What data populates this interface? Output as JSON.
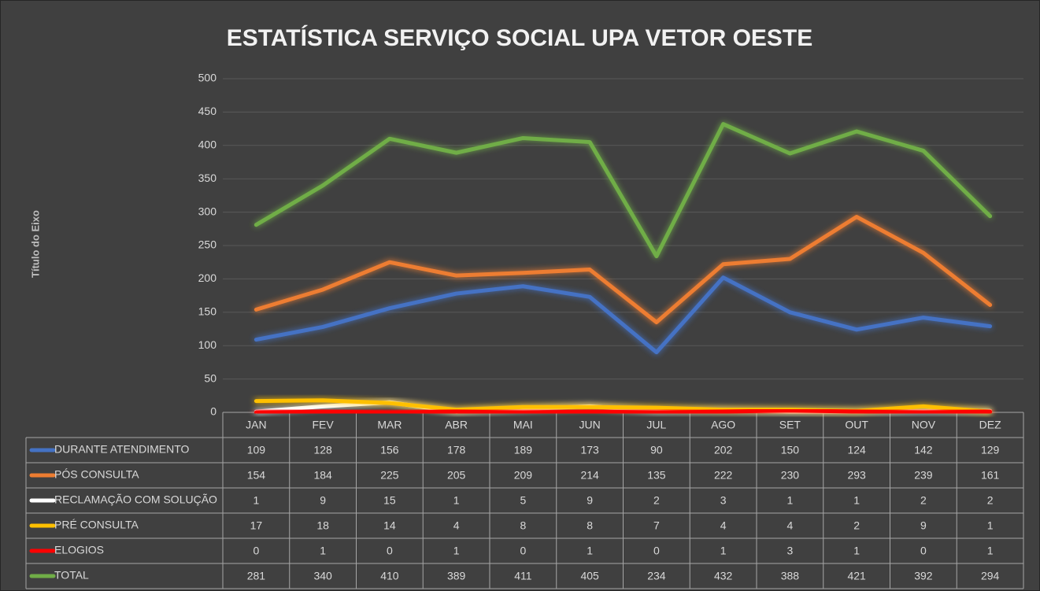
{
  "chart_data": {
    "type": "line",
    "title": "ESTATÍSTICA SERVIÇO SOCIAL UPA VETOR OESTE",
    "y_label": "Título do Eixo",
    "categories": [
      "JAN",
      "FEV",
      "MAR",
      "ABR",
      "MAI",
      "JUN",
      "JUL",
      "AGO",
      "SET",
      "OUT",
      "NOV",
      "DEZ"
    ],
    "series": [
      {
        "name": "DURANTE ATENDIMENTO",
        "color": "#4472c4",
        "values": [
          109,
          128,
          156,
          178,
          189,
          173,
          90,
          202,
          150,
          124,
          142,
          129
        ]
      },
      {
        "name": "PÓS CONSULTA",
        "color": "#ed7d31",
        "values": [
          154,
          184,
          225,
          205,
          209,
          214,
          135,
          222,
          230,
          293,
          239,
          161
        ]
      },
      {
        "name": "RECLAMAÇÃO COM SOLUÇÃO",
        "color": "#ffffff",
        "values": [
          1,
          9,
          15,
          1,
          5,
          9,
          2,
          3,
          1,
          1,
          2,
          2
        ]
      },
      {
        "name": "PRÉ CONSULTA",
        "color": "#ffc000",
        "values": [
          17,
          18,
          14,
          4,
          8,
          8,
          7,
          4,
          4,
          2,
          9,
          1
        ]
      },
      {
        "name": "ELOGIOS",
        "color": "#ff0000",
        "values": [
          0,
          1,
          0,
          1,
          0,
          1,
          0,
          1,
          3,
          1,
          0,
          1
        ]
      },
      {
        "name": "TOTAL",
        "color": "#70ad47",
        "values": [
          281,
          340,
          410,
          389,
          411,
          405,
          234,
          432,
          388,
          421,
          392,
          294
        ]
      }
    ],
    "ylim": [
      0,
      500
    ],
    "yticks": [
      0,
      50,
      100,
      150,
      200,
      250,
      300,
      350,
      400,
      450,
      500
    ],
    "grid": true
  }
}
